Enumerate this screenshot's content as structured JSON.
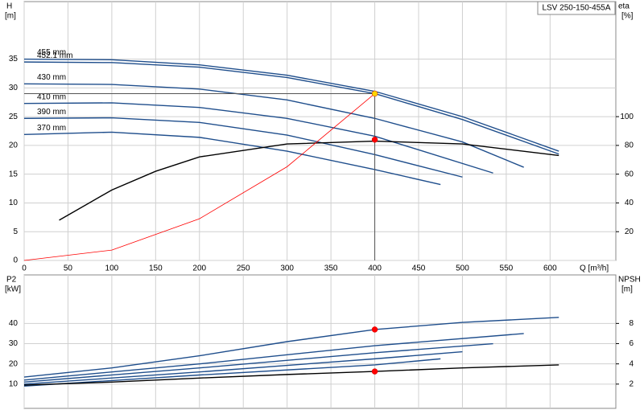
{
  "chart_data": [
    {
      "type": "line",
      "title": "LSV 250-150-455A",
      "ylabel": "H",
      "ylabel_unit": "[m]",
      "y2label": "eta",
      "y2label_unit": "[%]",
      "xlabel": "Q [m³/h]",
      "xlim": [
        0,
        675
      ],
      "xticks": [
        0,
        50,
        100,
        150,
        200,
        250,
        300,
        350,
        400,
        450,
        500,
        550,
        600
      ],
      "ylim": [
        0,
        45
      ],
      "yticks": [
        0,
        5,
        10,
        15,
        20,
        25,
        30,
        35
      ],
      "y2lim": [
        0,
        180
      ],
      "y2ticks": [
        20,
        40,
        60,
        80,
        100
      ],
      "grid": true,
      "series": [
        {
          "name": "455 mm",
          "color": "#1f4e8c",
          "x": [
            0,
            100,
            200,
            300,
            400,
            500,
            610
          ],
          "values": [
            35,
            34.9,
            34,
            32.2,
            29.4,
            25,
            19
          ]
        },
        {
          "name": "452.1 mm",
          "color": "#1f4e8c",
          "x": [
            0,
            100,
            200,
            300,
            400,
            500,
            610
          ],
          "values": [
            34.5,
            34.4,
            33.6,
            31.8,
            29,
            24.5,
            18.5
          ]
        },
        {
          "name": "430 mm",
          "color": "#1f4e8c",
          "x": [
            0,
            100,
            200,
            300,
            400,
            500,
            570
          ],
          "values": [
            30.7,
            30.6,
            29.8,
            27.9,
            24.7,
            20.6,
            16.2
          ]
        },
        {
          "name": "410 mm",
          "color": "#1f4e8c",
          "x": [
            0,
            100,
            200,
            300,
            400,
            535
          ],
          "values": [
            27.3,
            27.4,
            26.6,
            24.7,
            21.6,
            15.2
          ]
        },
        {
          "name": "390 mm",
          "color": "#1f4e8c",
          "x": [
            0,
            100,
            200,
            300,
            400,
            500
          ],
          "values": [
            24.7,
            24.8,
            24,
            21.8,
            18.4,
            14.5
          ]
        },
        {
          "name": "370 mm",
          "color": "#1f4e8c",
          "x": [
            0,
            100,
            200,
            300,
            400,
            475
          ],
          "values": [
            21.9,
            22.3,
            21.4,
            19,
            15.8,
            13.2
          ]
        },
        {
          "color": "#000000",
          "axis": "y2",
          "x": [
            40,
            100,
            150,
            200,
            300,
            400,
            500,
            610
          ],
          "values": [
            28,
            49,
            62,
            72,
            81,
            83,
            81,
            73
          ]
        },
        {
          "color": "#ff0000",
          "x": [
            0,
            100,
            200,
            300,
            400
          ],
          "values": [
            0,
            1.8,
            7.25,
            16.3,
            29
          ]
        }
      ],
      "markers": [
        {
          "x": 400,
          "y": 29,
          "color": "#ffd700",
          "guides": true
        },
        {
          "x": 400,
          "y": 84,
          "axis": "y2",
          "color": "#ff0000"
        }
      ]
    },
    {
      "type": "line",
      "ylabel": "P2",
      "ylabel_unit": "[kW]",
      "y2label": "NPSH",
      "y2label_unit": "[m]",
      "xlim": [
        0,
        675
      ],
      "xticks": [
        0,
        50,
        100,
        150,
        200,
        250,
        300,
        350,
        400,
        450,
        500,
        550,
        600
      ],
      "ylim": [
        -2,
        64
      ],
      "yticks": [
        10,
        20,
        30,
        40
      ],
      "y2lim": [
        -0.4,
        12.8
      ],
      "y2ticks": [
        2,
        4,
        6,
        8
      ],
      "grid": true,
      "series": [
        {
          "color": "#1f4e8c",
          "x": [
            0,
            100,
            200,
            300,
            400,
            500,
            610
          ],
          "values": [
            13.5,
            18,
            24,
            31,
            37,
            40.5,
            43
          ]
        },
        {
          "color": "#1f4e8c",
          "x": [
            0,
            200,
            400,
            570
          ],
          "values": [
            12,
            20,
            29,
            35
          ]
        },
        {
          "color": "#1f4e8c",
          "x": [
            0,
            200,
            400,
            535
          ],
          "values": [
            11,
            18,
            25.5,
            30
          ]
        },
        {
          "color": "#1f4e8c",
          "x": [
            0,
            200,
            400,
            500
          ],
          "values": [
            10,
            16,
            22.5,
            26
          ]
        },
        {
          "color": "#1f4e8c",
          "x": [
            0,
            200,
            400,
            475
          ],
          "values": [
            9,
            14.5,
            19.5,
            22.5
          ]
        },
        {
          "color": "#000000",
          "axis": "y2",
          "x": [
            0,
            100,
            200,
            300,
            400,
            500,
            610
          ],
          "values": [
            1.9,
            2.2,
            2.6,
            2.95,
            3.25,
            3.6,
            3.9
          ]
        }
      ],
      "markers": [
        {
          "x": 400,
          "y": 37,
          "color": "#ff0000"
        },
        {
          "x": 400,
          "y": 3.25,
          "axis": "y2",
          "color": "#ff0000"
        }
      ]
    }
  ]
}
